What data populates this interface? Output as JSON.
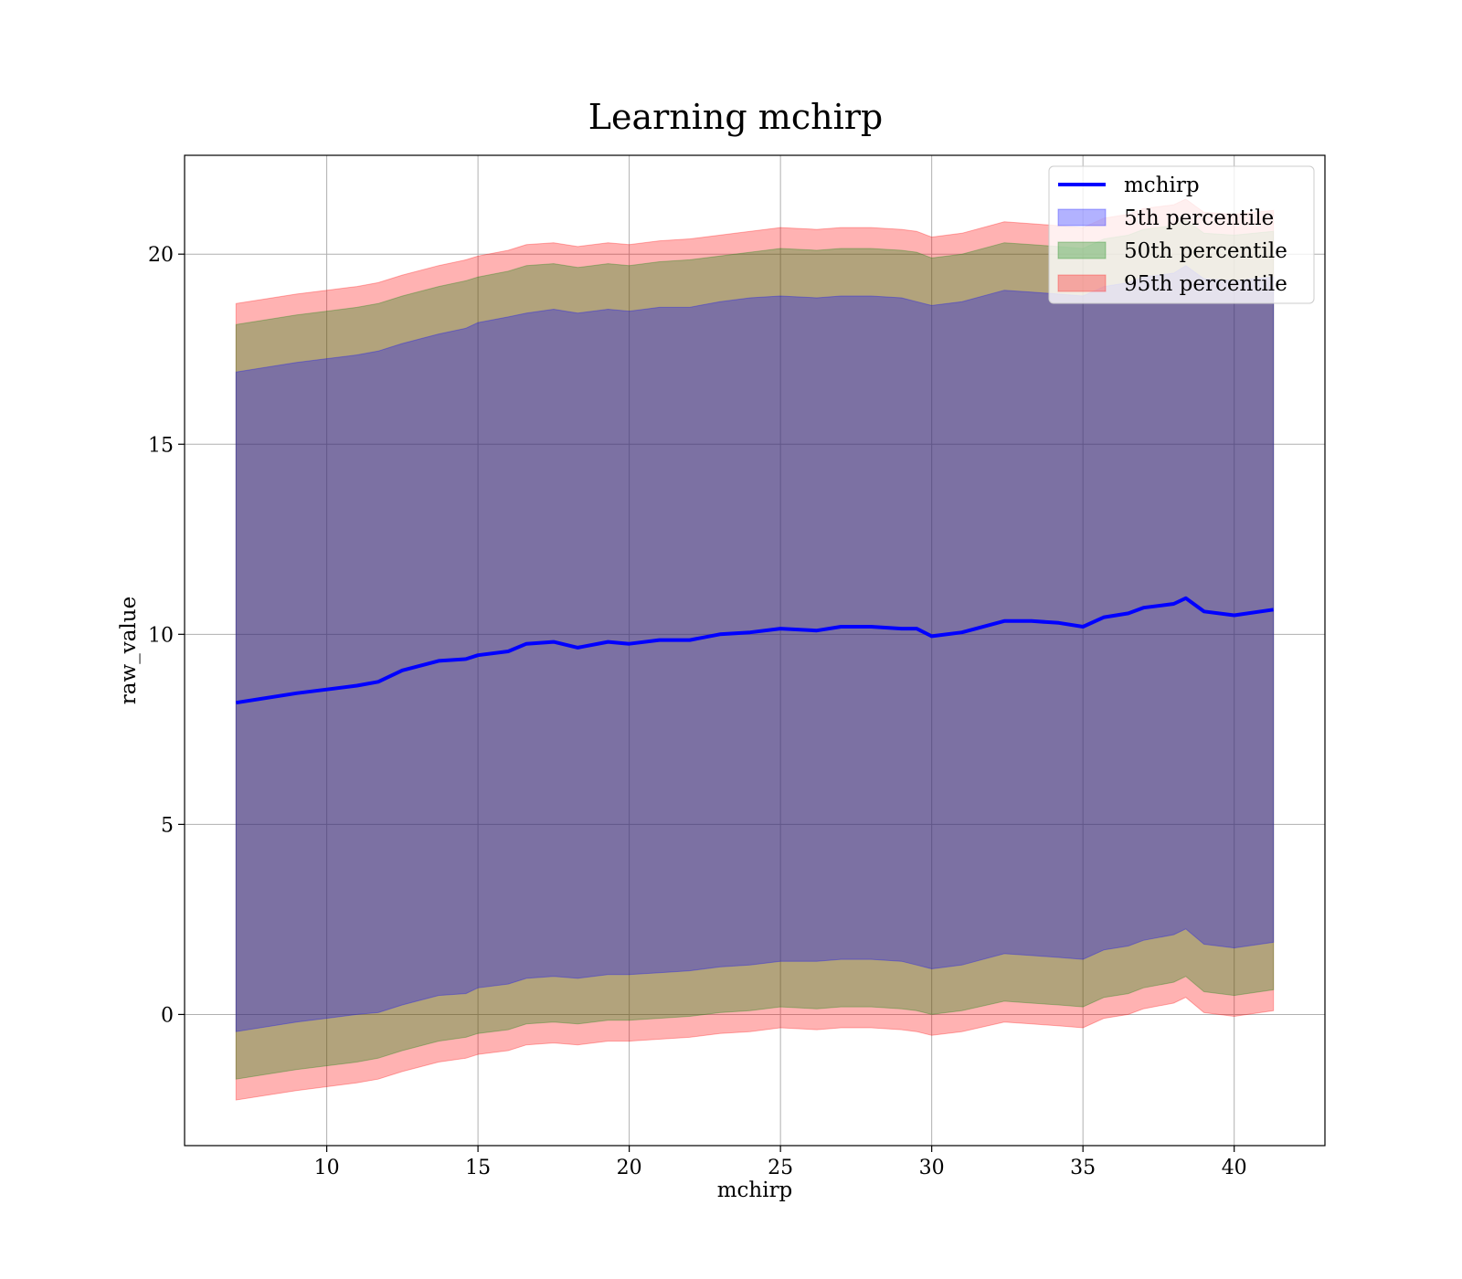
{
  "chart_data": {
    "type": "area",
    "title": "Learning mchirp",
    "xlabel": "mchirp",
    "ylabel": "raw_value",
    "xlim": [
      5.3,
      43.0
    ],
    "ylim": [
      -3.45,
      22.6
    ],
    "xticks": [
      10,
      15,
      20,
      25,
      30,
      35,
      40
    ],
    "yticks": [
      0,
      5,
      10,
      15,
      20
    ],
    "grid": true,
    "legend_position": "upper right",
    "x": [
      7.0,
      9.0,
      10.0,
      11.0,
      11.7,
      12.5,
      13.7,
      14.6,
      15.0,
      16.0,
      16.6,
      17.5,
      18.3,
      19.3,
      20.0,
      21.0,
      22.0,
      23.0,
      24.0,
      25.0,
      26.2,
      27.0,
      28.0,
      29.0,
      29.5,
      30.0,
      31.0,
      32.4,
      33.3,
      34.2,
      35.0,
      35.7,
      36.5,
      37.0,
      38.0,
      38.4,
      39.0,
      40.0,
      41.3
    ],
    "series": [
      {
        "name": "mchirp",
        "kind": "line",
        "color": "#0000ff",
        "values": [
          8.2,
          8.45,
          8.55,
          8.65,
          8.75,
          9.05,
          9.3,
          9.35,
          9.45,
          9.55,
          9.75,
          9.8,
          9.65,
          9.8,
          9.75,
          9.85,
          9.85,
          10.0,
          10.05,
          10.15,
          10.1,
          10.2,
          10.2,
          10.15,
          10.15,
          9.95,
          10.05,
          10.35,
          10.35,
          10.3,
          10.2,
          10.45,
          10.55,
          10.7,
          10.8,
          10.95,
          10.6,
          10.5,
          10.65
        ]
      },
      {
        "name": "5th percentile",
        "kind": "band",
        "color": "#0000ff",
        "lower": [
          -0.45,
          -0.2,
          -0.1,
          0.0,
          0.05,
          0.25,
          0.5,
          0.55,
          0.7,
          0.8,
          0.95,
          1.0,
          0.95,
          1.05,
          1.05,
          1.1,
          1.15,
          1.25,
          1.3,
          1.4,
          1.4,
          1.45,
          1.45,
          1.4,
          1.3,
          1.2,
          1.3,
          1.6,
          1.55,
          1.5,
          1.45,
          1.7,
          1.8,
          1.95,
          2.1,
          2.25,
          1.85,
          1.75,
          1.9
        ],
        "upper": [
          16.9,
          17.15,
          17.25,
          17.35,
          17.45,
          17.65,
          17.9,
          18.05,
          18.2,
          18.35,
          18.45,
          18.55,
          18.45,
          18.55,
          18.5,
          18.6,
          18.6,
          18.75,
          18.85,
          18.9,
          18.85,
          18.9,
          18.9,
          18.85,
          18.75,
          18.65,
          18.75,
          19.05,
          19.0,
          18.95,
          18.9,
          19.15,
          19.25,
          19.4,
          19.5,
          19.7,
          19.35,
          19.3,
          19.4
        ]
      },
      {
        "name": "50th percentile",
        "kind": "band",
        "color": "#008000",
        "lower": [
          -1.7,
          -1.45,
          -1.35,
          -1.25,
          -1.15,
          -0.95,
          -0.7,
          -0.6,
          -0.5,
          -0.4,
          -0.25,
          -0.2,
          -0.25,
          -0.15,
          -0.15,
          -0.1,
          -0.05,
          0.05,
          0.1,
          0.2,
          0.15,
          0.2,
          0.2,
          0.15,
          0.1,
          0.0,
          0.1,
          0.35,
          0.3,
          0.25,
          0.2,
          0.45,
          0.55,
          0.7,
          0.85,
          1.0,
          0.6,
          0.5,
          0.65
        ],
        "upper": [
          18.15,
          18.4,
          18.5,
          18.6,
          18.7,
          18.9,
          19.15,
          19.3,
          19.4,
          19.55,
          19.7,
          19.75,
          19.65,
          19.75,
          19.7,
          19.8,
          19.85,
          19.95,
          20.05,
          20.15,
          20.1,
          20.15,
          20.15,
          20.1,
          20.05,
          19.9,
          20.0,
          20.3,
          20.25,
          20.2,
          20.15,
          20.4,
          20.5,
          20.65,
          20.75,
          20.9,
          20.55,
          20.5,
          20.6
        ]
      },
      {
        "name": "95th percentile",
        "kind": "band",
        "color": "#ff0000",
        "lower": [
          -2.25,
          -2.0,
          -1.9,
          -1.8,
          -1.7,
          -1.5,
          -1.25,
          -1.15,
          -1.05,
          -0.95,
          -0.8,
          -0.75,
          -0.8,
          -0.7,
          -0.7,
          -0.65,
          -0.6,
          -0.5,
          -0.45,
          -0.35,
          -0.4,
          -0.35,
          -0.35,
          -0.4,
          -0.45,
          -0.55,
          -0.45,
          -0.2,
          -0.25,
          -0.3,
          -0.35,
          -0.1,
          0.0,
          0.15,
          0.3,
          0.45,
          0.05,
          -0.05,
          0.1
        ],
        "upper": [
          18.7,
          18.95,
          19.05,
          19.15,
          19.25,
          19.45,
          19.7,
          19.85,
          19.95,
          20.1,
          20.25,
          20.3,
          20.2,
          20.3,
          20.25,
          20.35,
          20.4,
          20.5,
          20.6,
          20.7,
          20.65,
          20.7,
          20.7,
          20.65,
          20.6,
          20.45,
          20.55,
          20.85,
          20.8,
          20.75,
          20.7,
          20.95,
          21.05,
          21.2,
          21.3,
          21.45,
          21.1,
          21.05,
          21.15
        ]
      }
    ]
  }
}
